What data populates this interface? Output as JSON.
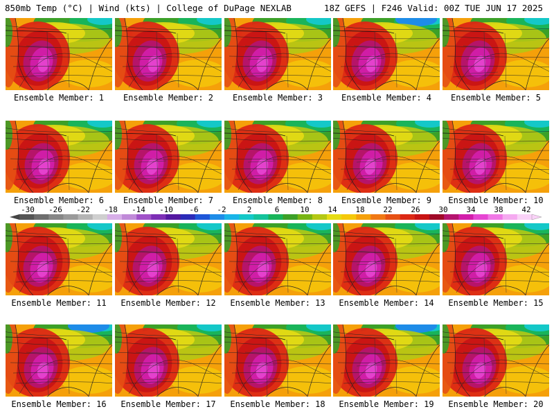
{
  "header": {
    "left": "850mb Temp (°C) | Wind (kts) | College of DuPage NEXLAB",
    "right": "18Z GEFS | F246 Valid: 00Z TUE JUN 17 2025"
  },
  "member_label_prefix": "Ensemble Member: ",
  "members": [
    1,
    2,
    3,
    4,
    5,
    6,
    7,
    8,
    9,
    10,
    11,
    12,
    13,
    14,
    15,
    16,
    17,
    18,
    19,
    20
  ],
  "colorbar": {
    "tick_labels": [
      "-30",
      "-26",
      "-22",
      "-18",
      "-14",
      "-10",
      "-6",
      "-2",
      "2",
      "6",
      "10",
      "14",
      "18",
      "22",
      "26",
      "30",
      "34",
      "38",
      "42"
    ],
    "colors": [
      "#555555",
      "#6e6e6e",
      "#878787",
      "#9a9a9a",
      "#b4b4b4",
      "#cfcfcf",
      "#d7aee8",
      "#c08ad8",
      "#a052c8",
      "#7d2fb5",
      "#5418a0",
      "#2b2bb8",
      "#1e56d8",
      "#1e8ce8",
      "#19b4e8",
      "#14c8c8",
      "#14c39b",
      "#19b45a",
      "#3ca028",
      "#78b414",
      "#b4c814",
      "#e6dc14",
      "#f5c80a",
      "#f5a00a",
      "#f07814",
      "#e65014",
      "#dc2814",
      "#c81414",
      "#a00a28",
      "#b4146e",
      "#d21eaa",
      "#e646d2",
      "#f078e6",
      "#f5aaf0",
      "#fad2f8"
    ]
  }
}
